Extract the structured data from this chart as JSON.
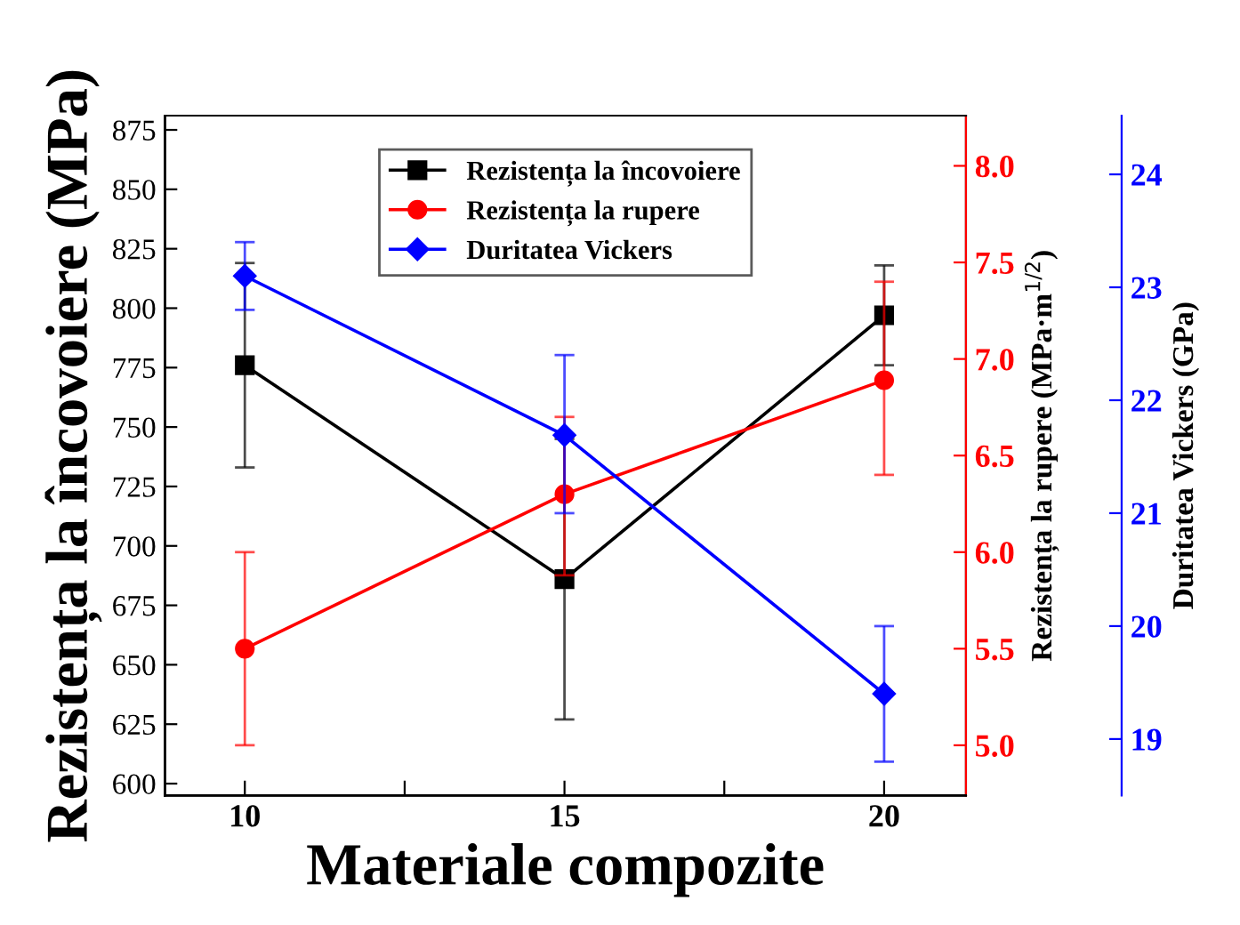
{
  "chart_data": {
    "type": "line",
    "xlabel": "Materiale compozite",
    "ylabel": "Rezistența la încovoiere (MPa)",
    "y2label": "Rezistența la rupere (MPa·m$^{1/2}$)",
    "y3label": "Duritatea Vickers (GPa)",
    "x": [
      10,
      15,
      20
    ],
    "series": [
      {
        "name": "Rezistența la încovoiere",
        "color": "#000000",
        "marker": "square",
        "values": [
          776,
          686,
          797
        ],
        "errors": [
          [
            733,
            819
          ],
          [
            627,
            745
          ],
          [
            776,
            818
          ]
        ]
      },
      {
        "name": "Rezistența la rupere",
        "color": "#ff0000",
        "marker": "circle",
        "axis": "y2",
        "values": [
          5.5,
          6.3,
          6.89
        ],
        "errors": [
          [
            5.0,
            6.0
          ],
          [
            5.88,
            6.7
          ],
          [
            6.4,
            7.4
          ]
        ]
      },
      {
        "name": "Duritatea Vickers",
        "color": "#0000ff",
        "marker": "diamond",
        "axis": "y3",
        "values": [
          23.1,
          21.69,
          19.4
        ],
        "errors": [
          [
            22.8,
            23.4
          ],
          [
            21.0,
            22.4
          ],
          [
            18.8,
            20.0
          ]
        ]
      }
    ],
    "xlim": [
      8.75,
      21.28
    ],
    "xticks": [
      10,
      {
        "value": 12.5,
        "label": null
      },
      15,
      {
        "value": 17.5,
        "label": null
      },
      20
    ],
    "ylim": [
      595,
      881
    ],
    "yticks": [
      600,
      625,
      650,
      675,
      700,
      725,
      750,
      775,
      800,
      825,
      850,
      875
    ],
    "y2lim": [
      4.74,
      8.26
    ],
    "y2ticks": [
      {
        "value": 5.0,
        "label": "5.0"
      },
      {
        "value": 5.5,
        "label": "5.5"
      },
      {
        "value": 6.0,
        "label": "6.0"
      },
      {
        "value": 6.5,
        "label": "6.5"
      },
      {
        "value": 7.0,
        "label": "7.0"
      },
      {
        "value": 7.5,
        "label": "7.5"
      },
      {
        "value": 8.0,
        "label": "8.0"
      }
    ],
    "y3lim": [
      18.5,
      24.52
    ],
    "y3ticks": [
      19,
      20,
      21,
      22,
      23,
      24
    ],
    "legend": "top",
    "grid": false,
    "line_style": "solid"
  }
}
